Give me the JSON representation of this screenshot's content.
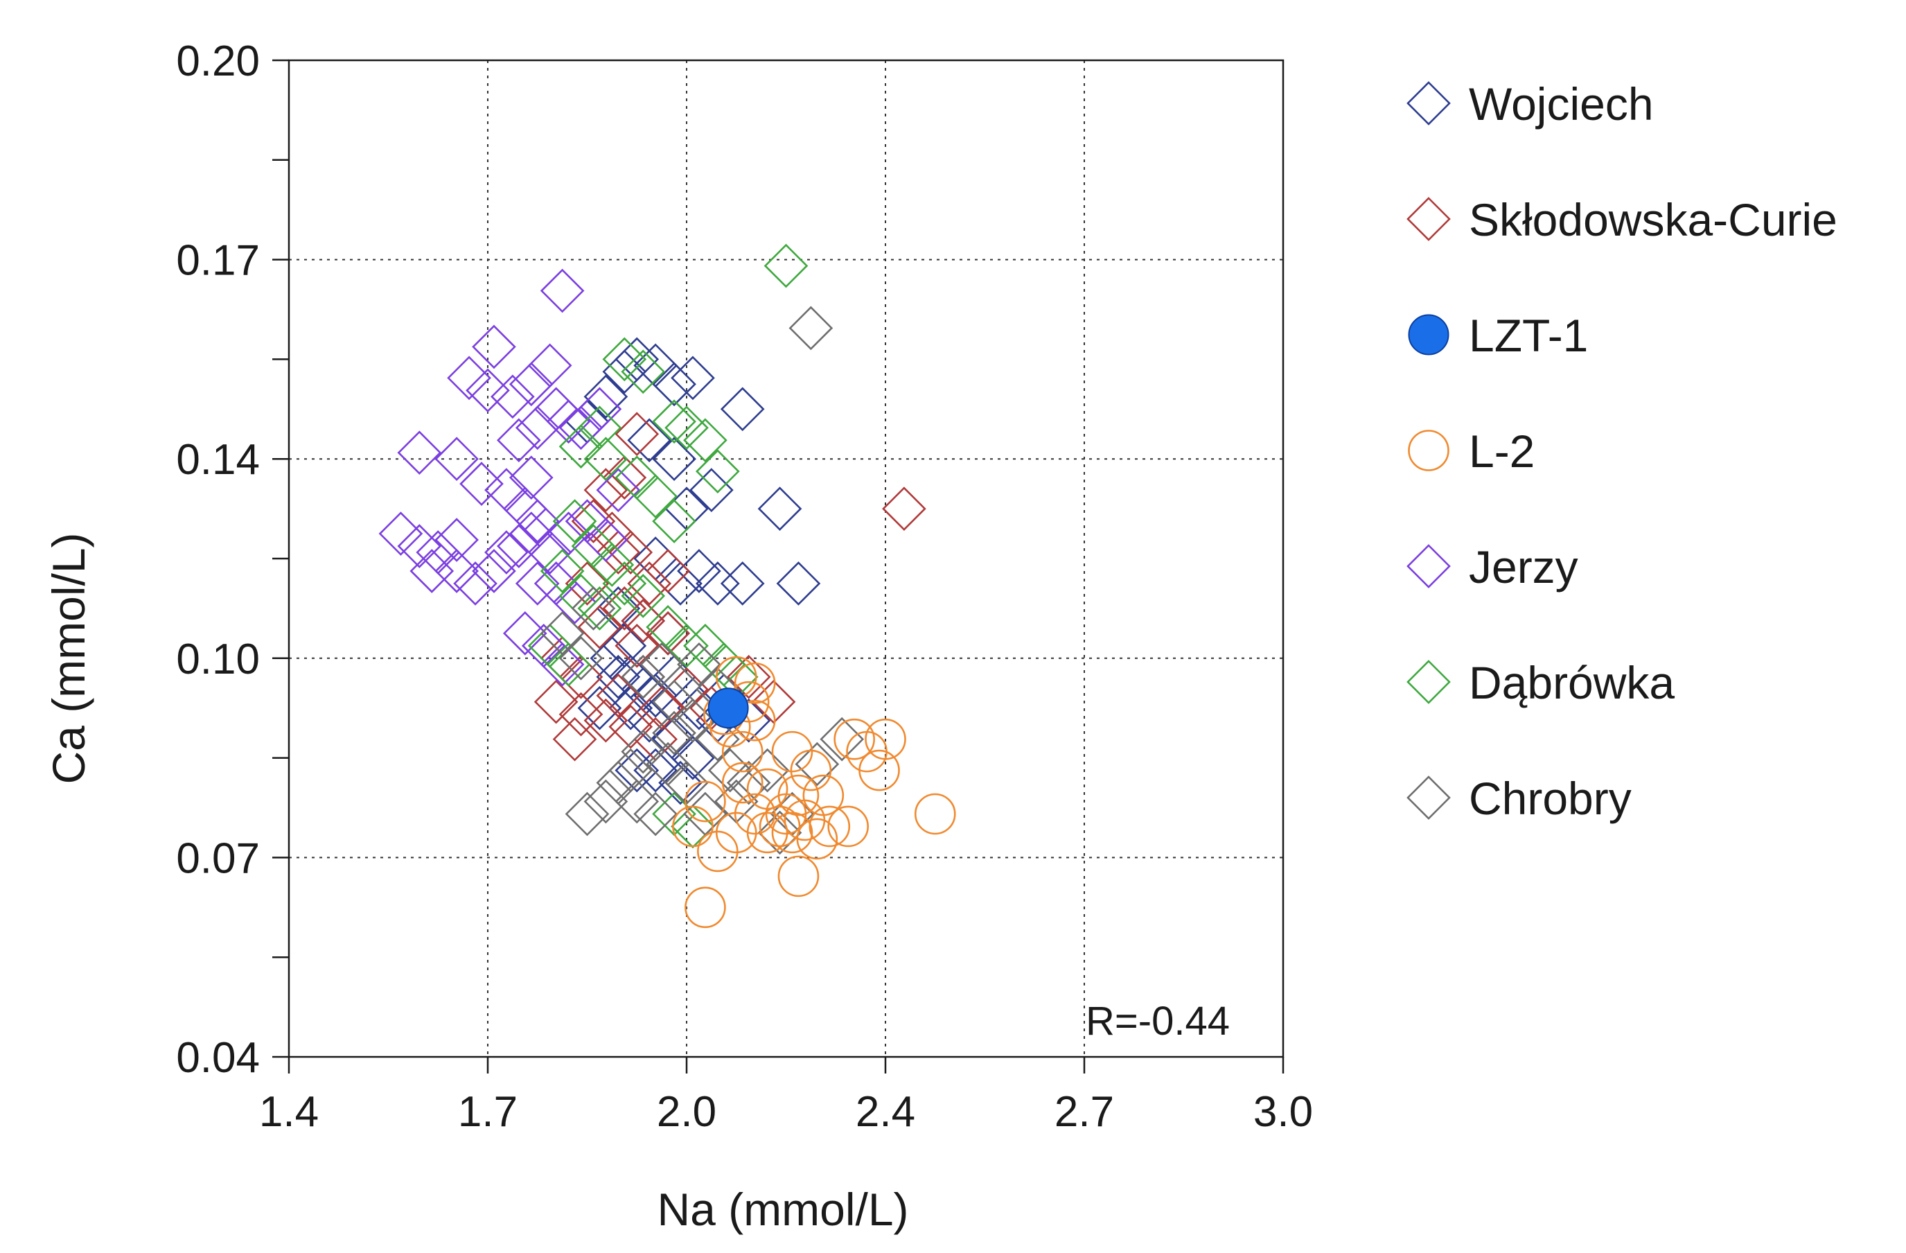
{
  "chart_data": {
    "type": "scatter",
    "title": "",
    "xlabel": "Na (mmol/L)",
    "ylabel": "Ca (mmol/L)",
    "xlim": [
      1.4,
      3.0
    ],
    "ylim": [
      0.04,
      0.2
    ],
    "xticks": [
      "1.4",
      "1.7",
      "2.0",
      "2.4",
      "2.7",
      "3.0"
    ],
    "yticks": [
      "0.04",
      "0.07",
      "0.10",
      "0.14",
      "0.17",
      "0.20"
    ],
    "grid": true,
    "legend_position": "right",
    "annotation": "R=-0.44",
    "series": [
      {
        "name": "Wojciech",
        "marker": "diamond-open",
        "color": "#2e3d8f",
        "points": [
          [
            1.88,
            0.142
          ],
          [
            1.91,
            0.146
          ],
          [
            1.94,
            0.15
          ],
          [
            1.96,
            0.152
          ],
          [
            1.99,
            0.151
          ],
          [
            2.02,
            0.148
          ],
          [
            2.05,
            0.149
          ],
          [
            2.13,
            0.144
          ],
          [
            2.19,
            0.128
          ],
          [
            2.22,
            0.116
          ],
          [
            1.98,
            0.139
          ],
          [
            2.02,
            0.136
          ],
          [
            2.08,
            0.131
          ],
          [
            2.04,
            0.128
          ],
          [
            1.99,
            0.12
          ],
          [
            2.03,
            0.116
          ],
          [
            2.06,
            0.118
          ],
          [
            2.09,
            0.116
          ],
          [
            2.13,
            0.116
          ],
          [
            1.93,
            0.112
          ],
          [
            1.97,
            0.11
          ],
          [
            2.01,
            0.108
          ],
          [
            1.92,
            0.104
          ],
          [
            1.95,
            0.101
          ],
          [
            1.99,
            0.098
          ],
          [
            2.02,
            0.101
          ],
          [
            2.06,
            0.096
          ],
          [
            2.09,
            0.094
          ],
          [
            1.95,
            0.096
          ],
          [
            1.98,
            0.094
          ],
          [
            2.02,
            0.091
          ],
          [
            2.05,
            0.088
          ],
          [
            1.99,
            0.086
          ],
          [
            2.03,
            0.084
          ],
          [
            1.96,
            0.086
          ],
          [
            1.93,
            0.101
          ],
          [
            1.97,
            0.099
          ],
          [
            2.0,
            0.103
          ],
          [
            1.9,
            0.096
          ],
          [
            1.94,
            0.106
          ],
          [
            2.1,
            0.098
          ],
          [
            2.14,
            0.094
          ]
        ]
      },
      {
        "name": "Skłodowska-Curie",
        "marker": "diamond-open",
        "color": "#b03a3a",
        "points": [
          [
            2.39,
            0.128
          ],
          [
            1.96,
            0.14
          ],
          [
            1.91,
            0.131
          ],
          [
            1.94,
            0.133
          ],
          [
            1.89,
            0.126
          ],
          [
            1.92,
            0.124
          ],
          [
            1.95,
            0.121
          ],
          [
            1.98,
            0.116
          ],
          [
            2.01,
            0.118
          ],
          [
            1.94,
            0.112
          ],
          [
            1.97,
            0.11
          ],
          [
            1.9,
            0.109
          ],
          [
            1.84,
            0.104
          ],
          [
            1.87,
            0.101
          ],
          [
            1.83,
            0.097
          ],
          [
            1.87,
            0.095
          ],
          [
            1.91,
            0.094
          ],
          [
            1.86,
            0.091
          ],
          [
            1.93,
            0.098
          ],
          [
            1.97,
            0.101
          ],
          [
            2.0,
            0.096
          ],
          [
            2.04,
            0.099
          ],
          [
            2.08,
            0.096
          ],
          [
            2.14,
            0.101
          ],
          [
            2.18,
            0.097
          ],
          [
            1.96,
            0.106
          ],
          [
            2.01,
            0.108
          ],
          [
            1.93,
            0.121
          ],
          [
            1.88,
            0.116
          ],
          [
            1.95,
            0.093
          ],
          [
            1.99,
            0.091
          ]
        ]
      },
      {
        "name": "LZT-1",
        "marker": "circle-filled",
        "color": "#1a6fe8",
        "points": [
          [
            2.107,
            0.096
          ]
        ]
      },
      {
        "name": "L-2",
        "marker": "circle-open",
        "color": "#f08a30",
        "points": [
          [
            2.07,
            0.081
          ],
          [
            2.05,
            0.077
          ],
          [
            2.09,
            0.073
          ],
          [
            2.07,
            0.064
          ],
          [
            2.12,
            0.076
          ],
          [
            2.15,
            0.079
          ],
          [
            2.17,
            0.076
          ],
          [
            2.19,
            0.077
          ],
          [
            2.21,
            0.076
          ],
          [
            2.23,
            0.078
          ],
          [
            2.25,
            0.075
          ],
          [
            2.27,
            0.077
          ],
          [
            2.3,
            0.077
          ],
          [
            2.31,
            0.091
          ],
          [
            2.33,
            0.089
          ],
          [
            2.35,
            0.086
          ],
          [
            2.36,
            0.091
          ],
          [
            2.24,
            0.086
          ],
          [
            2.22,
            0.082
          ],
          [
            2.2,
            0.079
          ],
          [
            2.14,
            0.097
          ],
          [
            2.12,
            0.101
          ],
          [
            2.15,
            0.1
          ],
          [
            2.11,
            0.093
          ],
          [
            2.13,
            0.089
          ],
          [
            2.15,
            0.094
          ],
          [
            2.1,
            0.095
          ],
          [
            2.21,
            0.089
          ],
          [
            2.44,
            0.079
          ],
          [
            2.22,
            0.069
          ],
          [
            2.17,
            0.083
          ],
          [
            2.13,
            0.084
          ],
          [
            2.26,
            0.082
          ]
        ]
      },
      {
        "name": "Jerzy",
        "marker": "diamond-open",
        "color": "#7b3fe0",
        "points": [
          [
            1.84,
            0.163
          ],
          [
            1.73,
            0.154
          ],
          [
            1.69,
            0.149
          ],
          [
            1.72,
            0.147
          ],
          [
            1.76,
            0.146
          ],
          [
            1.79,
            0.148
          ],
          [
            1.82,
            0.151
          ],
          [
            1.77,
            0.139
          ],
          [
            1.8,
            0.141
          ],
          [
            1.83,
            0.144
          ],
          [
            1.85,
            0.142
          ],
          [
            1.61,
            0.137
          ],
          [
            1.67,
            0.136
          ],
          [
            1.71,
            0.132
          ],
          [
            1.75,
            0.131
          ],
          [
            1.79,
            0.133
          ],
          [
            1.78,
            0.128
          ],
          [
            1.8,
            0.126
          ],
          [
            1.58,
            0.124
          ],
          [
            1.61,
            0.122
          ],
          [
            1.64,
            0.121
          ],
          [
            1.67,
            0.123
          ],
          [
            1.63,
            0.118
          ],
          [
            1.67,
            0.118
          ],
          [
            1.7,
            0.116
          ],
          [
            1.73,
            0.118
          ],
          [
            1.75,
            0.121
          ],
          [
            1.77,
            0.122
          ],
          [
            1.79,
            0.124
          ],
          [
            1.82,
            0.121
          ],
          [
            1.85,
            0.124
          ],
          [
            1.88,
            0.126
          ],
          [
            1.91,
            0.123
          ],
          [
            1.8,
            0.116
          ],
          [
            1.83,
            0.116
          ],
          [
            1.86,
            0.113
          ],
          [
            1.78,
            0.108
          ],
          [
            1.81,
            0.106
          ],
          [
            1.84,
            0.103
          ],
          [
            1.87,
            0.141
          ],
          [
            1.9,
            0.144
          ],
          [
            1.93,
            0.131
          ]
        ]
      },
      {
        "name": "Dąbrówka",
        "marker": "diamond-open",
        "color": "#3fa83f",
        "points": [
          [
            2.2,
            0.167
          ],
          [
            1.94,
            0.152
          ],
          [
            1.97,
            0.15
          ],
          [
            2.02,
            0.142
          ],
          [
            2.04,
            0.141
          ],
          [
            2.07,
            0.139
          ],
          [
            2.09,
            0.134
          ],
          [
            1.91,
            0.136
          ],
          [
            1.96,
            0.133
          ],
          [
            1.99,
            0.13
          ],
          [
            2.02,
            0.126
          ],
          [
            1.86,
            0.126
          ],
          [
            1.89,
            0.122
          ],
          [
            1.92,
            0.119
          ],
          [
            1.84,
            0.118
          ],
          [
            1.87,
            0.114
          ],
          [
            1.9,
            0.112
          ],
          [
            1.94,
            0.116
          ],
          [
            1.97,
            0.114
          ],
          [
            2.01,
            0.109
          ],
          [
            2.04,
            0.106
          ],
          [
            2.07,
            0.106
          ],
          [
            2.1,
            0.103
          ],
          [
            2.12,
            0.101
          ],
          [
            1.82,
            0.106
          ],
          [
            1.85,
            0.103
          ],
          [
            2.02,
            0.079
          ],
          [
            2.05,
            0.077
          ],
          [
            1.87,
            0.138
          ],
          [
            1.9,
            0.141
          ]
        ]
      },
      {
        "name": "Chrobry",
        "marker": "diamond-open",
        "color": "#6e6e6e",
        "points": [
          [
            2.24,
            0.157
          ],
          [
            2.29,
            0.091
          ],
          [
            2.25,
            0.087
          ],
          [
            2.21,
            0.079
          ],
          [
            2.19,
            0.076
          ],
          [
            2.12,
            0.081
          ],
          [
            2.07,
            0.079
          ],
          [
            2.04,
            0.084
          ],
          [
            2.01,
            0.087
          ],
          [
            1.97,
            0.089
          ],
          [
            1.95,
            0.086
          ],
          [
            1.93,
            0.084
          ],
          [
            1.96,
            0.081
          ],
          [
            1.99,
            0.079
          ],
          [
            1.91,
            0.081
          ],
          [
            1.88,
            0.079
          ],
          [
            2.02,
            0.092
          ],
          [
            2.05,
            0.094
          ],
          [
            2.09,
            0.091
          ],
          [
            2.11,
            0.086
          ],
          [
            2.14,
            0.084
          ],
          [
            2.17,
            0.086
          ],
          [
            2.0,
            0.103
          ],
          [
            1.97,
            0.101
          ],
          [
            2.02,
            0.097
          ],
          [
            1.87,
            0.104
          ],
          [
            1.84,
            0.108
          ],
          [
            1.89,
            0.112
          ],
          [
            2.06,
            0.103
          ],
          [
            2.09,
            0.099
          ]
        ]
      }
    ]
  }
}
